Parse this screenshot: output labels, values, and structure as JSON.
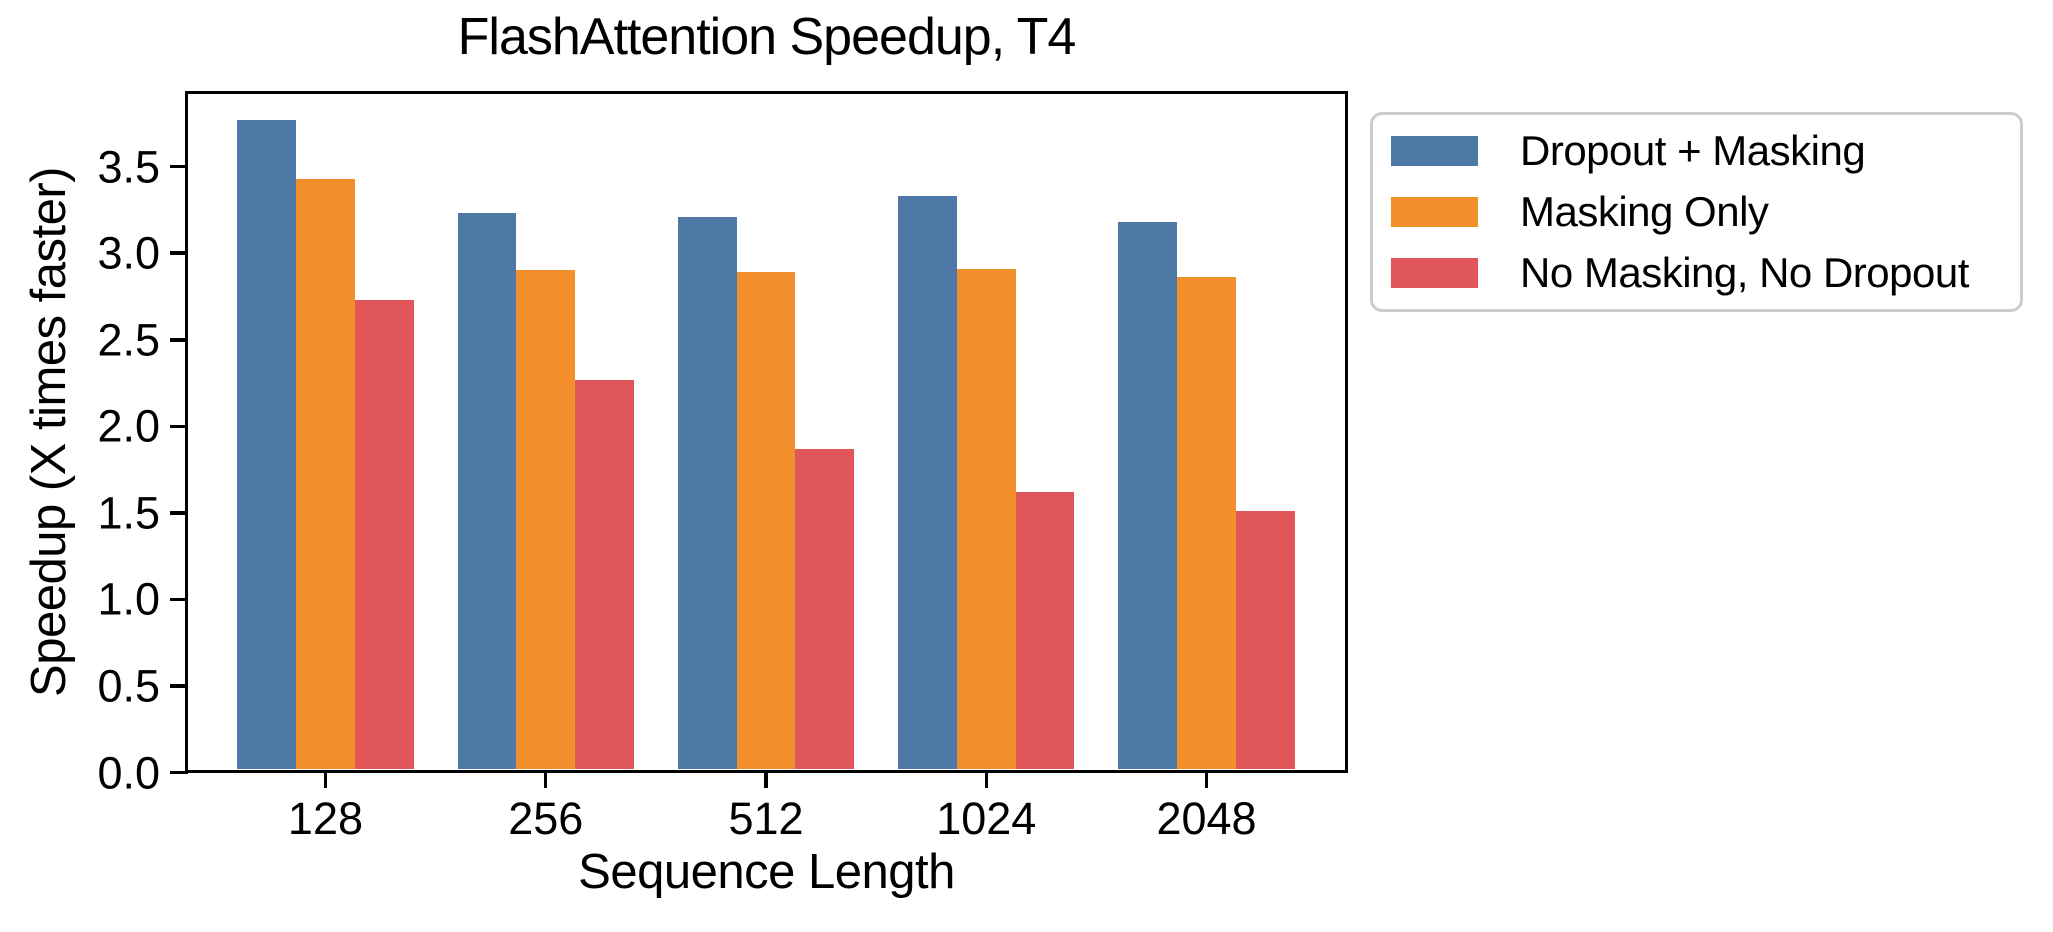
{
  "chart_data": {
    "type": "bar",
    "title": "FlashAttention Speedup, T4",
    "xlabel": "Sequence Length",
    "ylabel": "Speedup (X times faster)",
    "categories": [
      "128",
      "256",
      "512",
      "1024",
      "2048"
    ],
    "series": [
      {
        "name": "Dropout + Masking",
        "color": "#4E79A7",
        "values": [
          3.75,
          3.21,
          3.19,
          3.31,
          3.16
        ]
      },
      {
        "name": "Masking Only",
        "color": "#F28E2B",
        "values": [
          3.41,
          2.88,
          2.87,
          2.89,
          2.84
        ]
      },
      {
        "name": "No Masking, No Dropout",
        "color": "#E15759",
        "values": [
          2.71,
          2.25,
          1.85,
          1.6,
          1.49
        ]
      }
    ],
    "yticks": [
      "0.0",
      "0.5",
      "1.0",
      "1.5",
      "2.0",
      "2.5",
      "3.0",
      "3.5"
    ],
    "ylim": [
      0,
      3.94
    ],
    "grid": false,
    "legend_position": "outside upper right",
    "axis_color": "#000000",
    "legend_border_color": "#cccccc",
    "background_color": "#ffffff"
  }
}
